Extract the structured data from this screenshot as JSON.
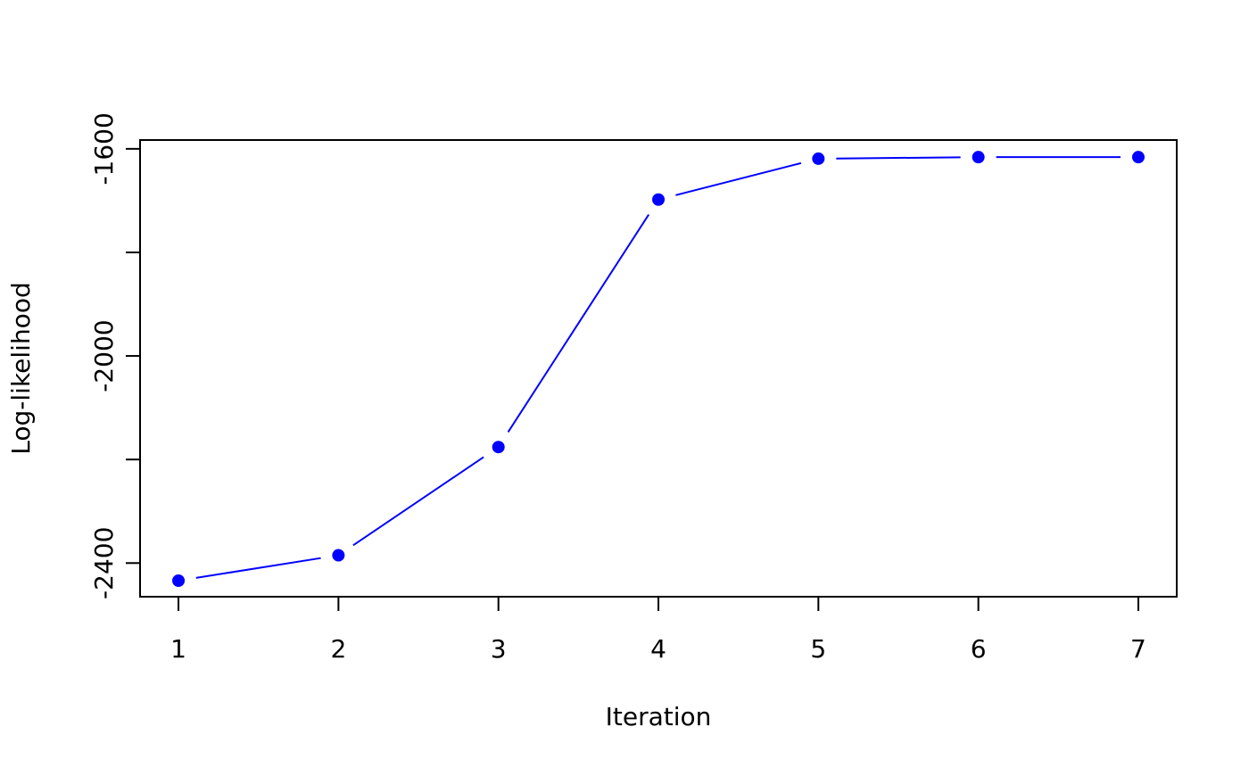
{
  "chart_data": {
    "type": "line",
    "x_label": "Iteration",
    "y_label": "Log-likelihood",
    "x": [
      1,
      2,
      3,
      4,
      5,
      6,
      7
    ],
    "series": [
      {
        "color": "#0000ff",
        "values": [
          -2434,
          -2385,
          -2176,
          -1698,
          -1619,
          -1616,
          -1616
        ]
      }
    ],
    "xlim": [
      0.76,
      7.24
    ],
    "ylim": [
      -2465,
      -1583
    ],
    "xticks": [
      1,
      2,
      3,
      4,
      5,
      6,
      7
    ],
    "yticks": [
      -2400,
      -2000,
      -1600
    ],
    "yminor_ticks": [
      -2200,
      -1800
    ],
    "grid": false
  }
}
